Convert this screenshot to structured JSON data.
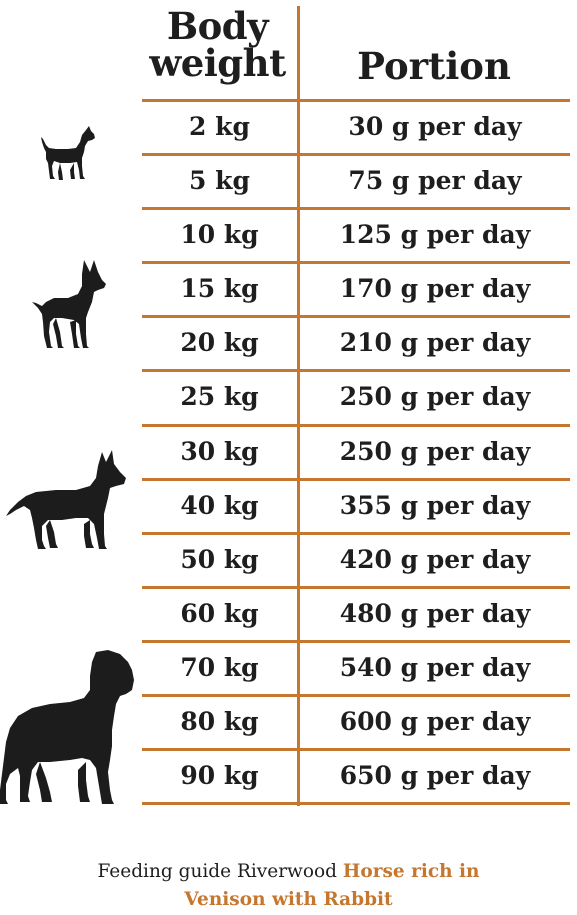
{
  "header": {
    "weight_line1": "Body",
    "weight_line2": "weight",
    "portion": "Portion"
  },
  "rows": [
    {
      "weight": "2 kg",
      "portion": "30 g per day"
    },
    {
      "weight": "5 kg",
      "portion": "75 g per day"
    },
    {
      "weight": "10 kg",
      "portion": "125 g per day"
    },
    {
      "weight": "15 kg",
      "portion": "170 g per day"
    },
    {
      "weight": "20 kg",
      "portion": "210 g per day"
    },
    {
      "weight": "25 kg",
      "portion": "250 g per day"
    },
    {
      "weight": "30 kg",
      "portion": "250 g per day"
    },
    {
      "weight": "40 kg",
      "portion": "355 g per day"
    },
    {
      "weight": "50 kg",
      "portion": "420 g per day"
    },
    {
      "weight": "60 kg",
      "portion": "480 g per day"
    },
    {
      "weight": "70 kg",
      "portion": "540 g per day"
    },
    {
      "weight": "80 kg",
      "portion": "600 g per day"
    },
    {
      "weight": "90 kg",
      "portion": "650 g per day"
    }
  ],
  "icons": [
    "small-dog-icon",
    "medium-dog-icon",
    "large-dog-icon",
    "giant-dog-icon"
  ],
  "footer": {
    "prefix": "Feeding guide Riverwood",
    "accent": "Horse rich in Venison with Rabbit"
  },
  "colors": {
    "accent": "#c5772f",
    "text": "#1e1e1e"
  }
}
